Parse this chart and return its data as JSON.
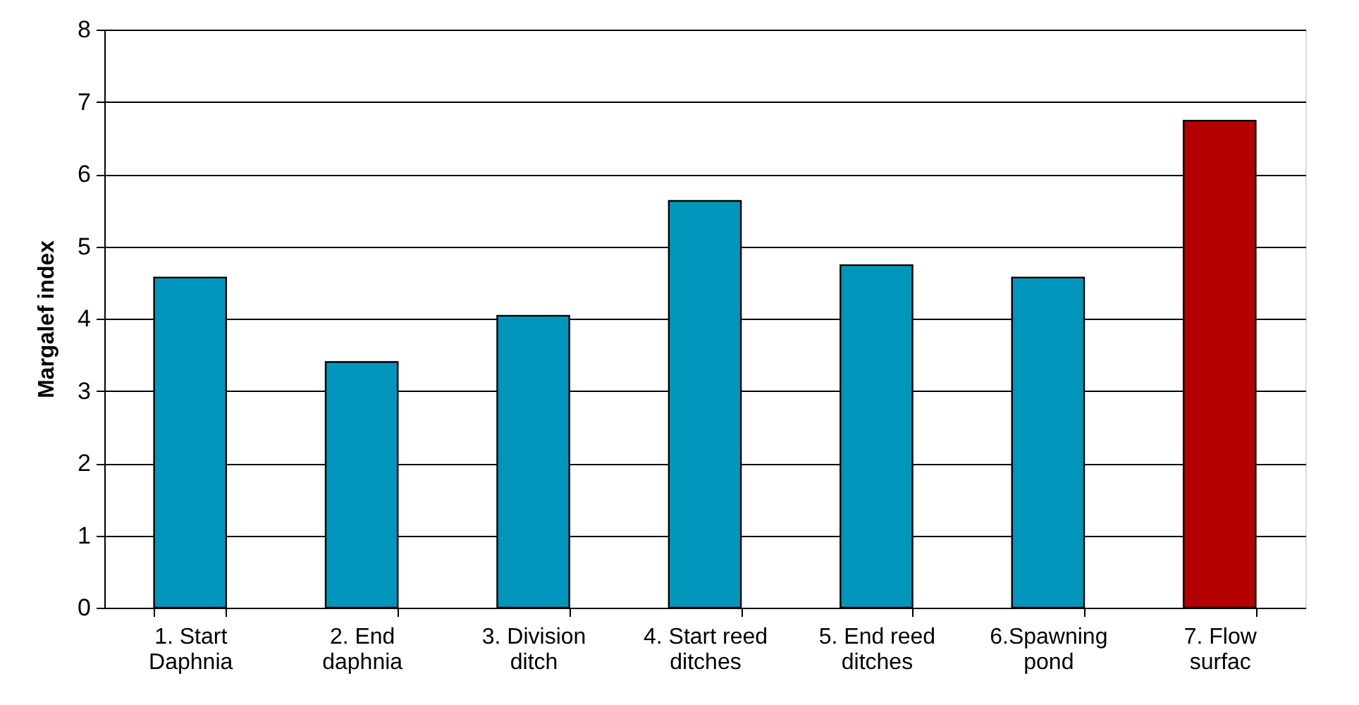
{
  "chart_data": {
    "type": "bar",
    "ylabel": "Margalef index",
    "categories": [
      "1. Start Daphnia",
      "2. End daphnia",
      "3. Division ditch",
      "4. Start reed ditches",
      "5. End reed ditches",
      "6.Spawning pond",
      "7. Flow surfac"
    ],
    "values": [
      4.57,
      3.4,
      4.04,
      5.63,
      4.74,
      4.57,
      6.74
    ],
    "colors": [
      "#0096bc",
      "#0096bc",
      "#0096bc",
      "#0096bc",
      "#0096bc",
      "#0096bc",
      "#b50000"
    ],
    "ylim": [
      0,
      8
    ],
    "yticks": [
      0,
      1,
      2,
      3,
      4,
      5,
      6,
      7,
      8
    ],
    "grid": "y"
  }
}
